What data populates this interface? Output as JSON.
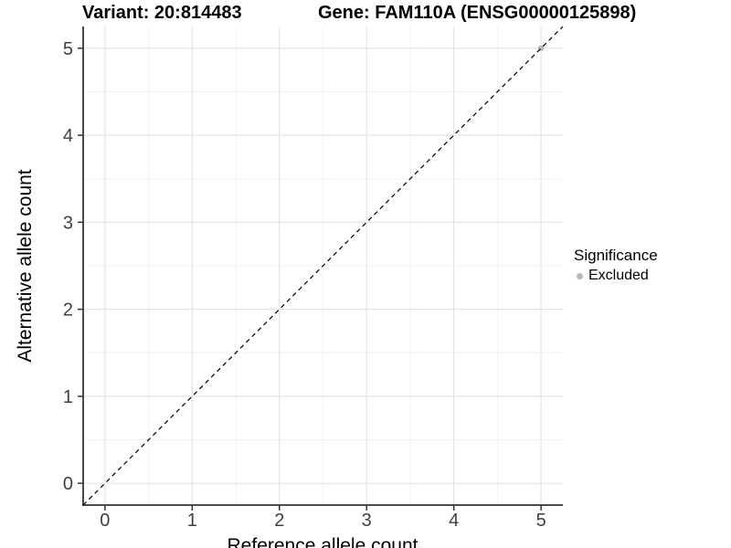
{
  "header": {
    "variant_title": "Variant: 20:814483",
    "gene_title": "Gene: FAM110A (ENSG00000125898)"
  },
  "legend": {
    "title": "Significance",
    "items": [
      {
        "label": "Excluded",
        "color": "#b9b9b9",
        "shape": "circle"
      }
    ],
    "position": "right"
  },
  "colors": {
    "background": "#ffffff",
    "grid_major": "#e4e4e4",
    "grid_minor": "#f2f2f2",
    "axis_line": "#333333",
    "tick_mark": "#333333",
    "tick_label": "#404040",
    "reference_line": "#000000",
    "point_excluded": "#b9b9b9"
  },
  "chart_data": {
    "type": "scatter",
    "title": "Variant: 20:814483    Gene: FAM110A (ENSG00000125898)",
    "xlabel": "Reference allele count",
    "ylabel": "Alternative allele count",
    "xlim": [
      -0.25,
      5.25
    ],
    "ylim": [
      -0.25,
      5.25
    ],
    "x_ticks": [
      0,
      1,
      2,
      3,
      4,
      5
    ],
    "y_ticks": [
      0,
      1,
      2,
      3,
      4,
      5
    ],
    "grid": "major+minor",
    "legend_position": "right",
    "series": [
      {
        "name": "Excluded",
        "color": "#b9b9b9",
        "points": [
          {
            "x": 5,
            "y": 5
          }
        ]
      }
    ],
    "reference_line": {
      "kind": "identity y=x",
      "style": "dashed",
      "color": "#000000"
    }
  }
}
